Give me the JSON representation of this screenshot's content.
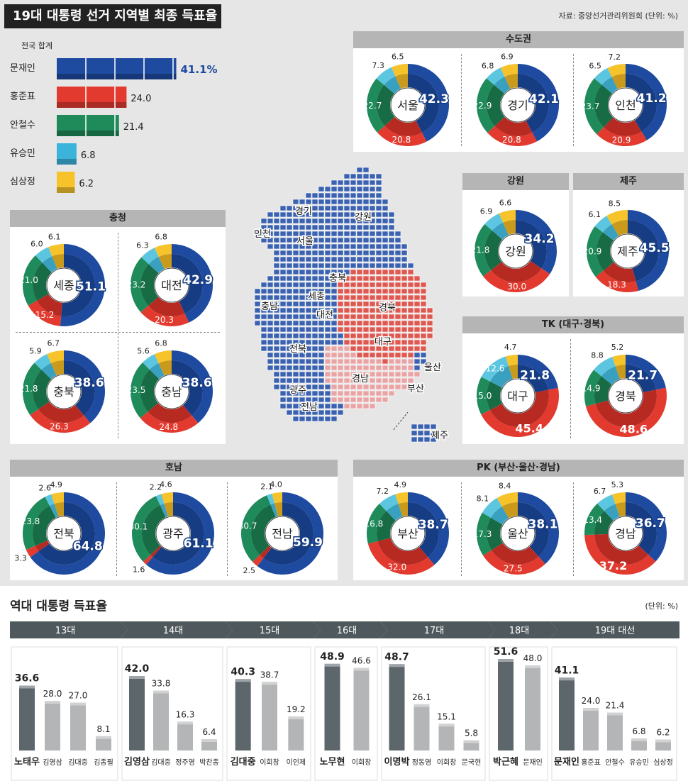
{
  "header": {
    "title": "19대 대통령 선거 지역별 최종 득표율",
    "source": "자료: 중앙선거관리위원회 (단위: %)"
  },
  "colors": {
    "moon": "#1e4ba0",
    "hong": "#e23a2f",
    "ahn": "#1f8a5a",
    "yoo": "#5cc6e0",
    "sim": "#f6c32b",
    "map_blue": "#3a62b0",
    "map_red": "#e0574f",
    "map_pink": "#e9a5a5"
  },
  "national": {
    "label": "전국 합계",
    "rows": [
      {
        "name": "문재인",
        "value": 41.1,
        "display": "41.1%",
        "color": "#1e4ba0"
      },
      {
        "name": "홍준표",
        "value": 24.0,
        "display": "24.0",
        "color": "#e23a2f"
      },
      {
        "name": "안철수",
        "value": 21.4,
        "display": "21.4",
        "color": "#1f8a5a"
      },
      {
        "name": "유승민",
        "value": 6.8,
        "display": "6.8",
        "color": "#3bb3db"
      },
      {
        "name": "심상정",
        "value": 6.2,
        "display": "6.2",
        "color": "#f6c32b"
      }
    ]
  },
  "groups": {
    "sudo": "수도권",
    "gangwon": "강원",
    "jeju": "제주",
    "chungcheong": "충청",
    "tk": "TK (대구·경북)",
    "honam": "호남",
    "pk": "PK (부산·울산·경남)"
  },
  "regions": {
    "seoul": {
      "name": "서울",
      "values": [
        "42.3",
        "20.8",
        "22.7",
        "7.3",
        "6.5"
      ]
    },
    "gyeonggi": {
      "name": "경기",
      "values": [
        "42.1",
        "20.8",
        "22.9",
        "6.8",
        "6.9"
      ]
    },
    "incheon": {
      "name": "인천",
      "values": [
        "41.2",
        "20.9",
        "23.7",
        "6.5",
        "7.2"
      ]
    },
    "gangwon": {
      "name": "강원",
      "values": [
        "34.2",
        "30.0",
        "21.8",
        "6.9",
        "6.6"
      ]
    },
    "jeju": {
      "name": "제주",
      "values": [
        "45.5",
        "18.3",
        "20.9",
        "6.1",
        "8.5"
      ]
    },
    "sejong": {
      "name": "세종",
      "values": [
        "51.1",
        "15.2",
        "21.0",
        "6.0",
        "6.1"
      ]
    },
    "daejeon": {
      "name": "대전",
      "values": [
        "42.9",
        "20.3",
        "23.2",
        "6.3",
        "6.8"
      ]
    },
    "chungbuk": {
      "name": "충북",
      "values": [
        "38.6",
        "26.3",
        "21.8",
        "5.9",
        "6.7"
      ]
    },
    "chungnam": {
      "name": "충남",
      "values": [
        "38.6",
        "24.8",
        "23.5",
        "5.6",
        "6.8"
      ]
    },
    "daegu": {
      "name": "대구",
      "values": [
        "21.8",
        "45.4",
        "15.0",
        "12.6",
        "4.7"
      ]
    },
    "gyeongbuk": {
      "name": "경북",
      "values": [
        "21.7",
        "48.6",
        "14.9",
        "8.8",
        "5.2"
      ]
    },
    "jeonbuk": {
      "name": "전북",
      "values": [
        "64.8",
        "3.3",
        "23.8",
        "2.6",
        "4.9"
      ]
    },
    "gwangju": {
      "name": "광주",
      "values": [
        "61.1",
        "1.6",
        "30.1",
        "2.2",
        "4.6"
      ]
    },
    "jeonnam": {
      "name": "전남",
      "values": [
        "59.9",
        "2.5",
        "30.7",
        "2.1",
        "4.0"
      ]
    },
    "busan": {
      "name": "부산",
      "values": [
        "38.7",
        "32.0",
        "16.8",
        "7.2",
        "4.9"
      ]
    },
    "ulsan": {
      "name": "울산",
      "values": [
        "38.1",
        "27.5",
        "17.3",
        "8.1",
        "8.4"
      ]
    },
    "gyeongnam": {
      "name": "경남",
      "values": [
        "36.7",
        "37.2",
        "13.4",
        "6.7",
        "5.3"
      ]
    }
  },
  "map_labels": [
    "경기",
    "강원",
    "인천",
    "서울",
    "충북",
    "세종",
    "충남",
    "대전",
    "경북",
    "대구",
    "전북",
    "울산",
    "경남",
    "부산",
    "광주",
    "전남",
    "제주"
  ],
  "history": {
    "title": "역대 대통령 득표율",
    "unit": "(단위: %)",
    "elections": [
      {
        "label": "13대",
        "candidates": [
          {
            "name": "노태우",
            "value": 36.6,
            "winner": true
          },
          {
            "name": "김영삼",
            "value": 28.0
          },
          {
            "name": "김대중",
            "value": 27.0
          },
          {
            "name": "김종필",
            "value": 8.1
          }
        ]
      },
      {
        "label": "14대",
        "candidates": [
          {
            "name": "김영삼",
            "value": 42.0,
            "winner": true
          },
          {
            "name": "김대중",
            "value": 33.8
          },
          {
            "name": "정주영",
            "value": 16.3
          },
          {
            "name": "박찬종",
            "value": 6.4
          }
        ]
      },
      {
        "label": "15대",
        "candidates": [
          {
            "name": "김대중",
            "value": 40.3,
            "winner": true
          },
          {
            "name": "이회창",
            "value": 38.7
          },
          {
            "name": "이인제",
            "value": 19.2
          }
        ]
      },
      {
        "label": "16대",
        "candidates": [
          {
            "name": "노무현",
            "value": 48.9,
            "winner": true
          },
          {
            "name": "이회창",
            "value": 46.6
          }
        ]
      },
      {
        "label": "17대",
        "candidates": [
          {
            "name": "이명박",
            "value": 48.7,
            "winner": true
          },
          {
            "name": "정동영",
            "value": 26.1
          },
          {
            "name": "이회창",
            "value": 15.1
          },
          {
            "name": "문국현",
            "value": 5.8
          }
        ]
      },
      {
        "label": "18대",
        "candidates": [
          {
            "name": "박근혜",
            "value": 51.6,
            "winner": true
          },
          {
            "name": "문재인",
            "value": 48.0
          }
        ]
      },
      {
        "label": "19대 대선",
        "candidates": [
          {
            "name": "문재인",
            "value": 41.1,
            "winner": true
          },
          {
            "name": "홍준표",
            "value": 24.0
          },
          {
            "name": "안철수",
            "value": 21.4
          },
          {
            "name": "유승민",
            "value": 6.8
          },
          {
            "name": "심상정",
            "value": 6.2
          }
        ]
      }
    ]
  },
  "chart_data": [
    {
      "type": "bar",
      "title": "19대 대통령 선거 지역별 최종 득표율",
      "subtitle": "전국 합계",
      "categories": [
        "문재인",
        "홍준표",
        "안철수",
        "유승민",
        "심상정"
      ],
      "values": [
        41.1,
        24.0,
        21.4,
        6.8,
        6.2
      ]
    },
    {
      "type": "pie",
      "categories": [
        "문재인",
        "홍준표",
        "안철수",
        "유승민",
        "심상정"
      ],
      "series": [
        {
          "name": "서울",
          "values": [
            42.3,
            20.8,
            22.7,
            7.3,
            6.5
          ]
        },
        {
          "name": "경기",
          "values": [
            42.1,
            20.8,
            22.9,
            6.8,
            6.9
          ]
        },
        {
          "name": "인천",
          "values": [
            41.2,
            20.9,
            23.7,
            6.5,
            7.2
          ]
        },
        {
          "name": "강원",
          "values": [
            34.2,
            30.0,
            21.8,
            6.9,
            6.6
          ]
        },
        {
          "name": "제주",
          "values": [
            45.5,
            18.3,
            20.9,
            6.1,
            8.5
          ]
        },
        {
          "name": "세종",
          "values": [
            51.1,
            15.2,
            21.0,
            6.0,
            6.1
          ]
        },
        {
          "name": "대전",
          "values": [
            42.9,
            20.3,
            23.2,
            6.3,
            6.8
          ]
        },
        {
          "name": "충북",
          "values": [
            38.6,
            26.3,
            21.8,
            5.9,
            6.7
          ]
        },
        {
          "name": "충남",
          "values": [
            38.6,
            24.8,
            23.5,
            5.6,
            6.8
          ]
        },
        {
          "name": "대구",
          "values": [
            21.8,
            45.4,
            15.0,
            12.6,
            4.7
          ]
        },
        {
          "name": "경북",
          "values": [
            21.7,
            48.6,
            14.9,
            8.8,
            5.2
          ]
        },
        {
          "name": "전북",
          "values": [
            64.8,
            3.3,
            23.8,
            2.6,
            4.9
          ]
        },
        {
          "name": "광주",
          "values": [
            61.1,
            1.6,
            30.1,
            2.2,
            4.6
          ]
        },
        {
          "name": "전남",
          "values": [
            59.9,
            2.5,
            30.7,
            2.1,
            4.0
          ]
        },
        {
          "name": "부산",
          "values": [
            38.7,
            32.0,
            16.8,
            7.2,
            4.9
          ]
        },
        {
          "name": "울산",
          "values": [
            38.1,
            27.5,
            17.3,
            8.1,
            8.4
          ]
        },
        {
          "name": "경남",
          "values": [
            36.7,
            37.2,
            13.4,
            6.7,
            5.3
          ]
        }
      ]
    },
    {
      "type": "bar",
      "title": "역대 대통령 득표율",
      "categories": [
        "13대",
        "14대",
        "15대",
        "16대",
        "17대",
        "18대",
        "19대 대선"
      ],
      "values_by_election": [
        [
          36.6,
          28.0,
          27.0,
          8.1
        ],
        [
          42.0,
          33.8,
          16.3,
          6.4
        ],
        [
          40.3,
          38.7,
          19.2
        ],
        [
          48.9,
          46.6
        ],
        [
          48.7,
          26.1,
          15.1,
          5.8
        ],
        [
          51.6,
          48.0
        ],
        [
          41.1,
          24.0,
          21.4,
          6.8,
          6.2
        ]
      ]
    }
  ]
}
